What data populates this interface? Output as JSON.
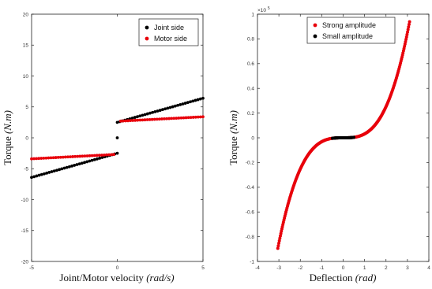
{
  "chart_data": [
    {
      "type": "scatter",
      "xlabel": "Joint/Motor velocity",
      "xlabel_unit": "(rad/s)",
      "ylabel": "Torque",
      "ylabel_unit": "(N.m)",
      "xlim": [
        -5,
        5
      ],
      "ylim": [
        -20,
        20
      ],
      "xticks": [
        "-5",
        "0",
        "5"
      ],
      "yticks": [
        "-20",
        "-15",
        "-10",
        "-5",
        "0",
        "5",
        "10",
        "15",
        "20"
      ],
      "grid": false,
      "legend_position": "top-right",
      "series": [
        {
          "name": "Joint side",
          "color": "#000000",
          "segments": [
            {
              "x": [
                -5,
                0
              ],
              "y": [
                -6.4,
                -2.5
              ]
            },
            {
              "x": [
                0,
                5
              ],
              "y": [
                2.5,
                6.4
              ]
            }
          ],
          "points": [
            {
              "x": 0,
              "y": 0
            }
          ]
        },
        {
          "name": "Motor side",
          "color": "#e8000b",
          "segments": [
            {
              "x": [
                -5,
                -0.2
              ],
              "y": [
                -3.4,
                -2.7
              ]
            },
            {
              "x": [
                0.2,
                5
              ],
              "y": [
                2.7,
                3.4
              ]
            }
          ]
        }
      ]
    },
    {
      "type": "scatter",
      "xlabel": "Deflection",
      "xlabel_unit": "(rad)",
      "ylabel": "Torque",
      "ylabel_unit": "(N.m)",
      "xlim": [
        -4,
        4
      ],
      "ylim": [
        -100000,
        100000
      ],
      "y_scale_label": "×10",
      "y_scale_exponent": "5",
      "xticks": [
        "-4",
        "-3",
        "-2",
        "-1",
        "0",
        "1",
        "2",
        "3",
        "4"
      ],
      "yticks": [
        "-1",
        "-0.8",
        "-0.6",
        "-0.4",
        "-0.2",
        "0",
        "0.2",
        "0.4",
        "0.6",
        "0.8",
        "1"
      ],
      "grid": false,
      "legend_position": "top-center",
      "series": [
        {
          "name": "Strong amplitude",
          "color": "#e8000b",
          "curve": "cubic",
          "coefficient": 3150,
          "x_range": [
            -3.05,
            3.1
          ]
        },
        {
          "name": "Small amplitude",
          "color": "#000000",
          "curve": "cubic",
          "coefficient": 3150,
          "x_range": [
            -0.5,
            0.5
          ]
        }
      ]
    }
  ]
}
